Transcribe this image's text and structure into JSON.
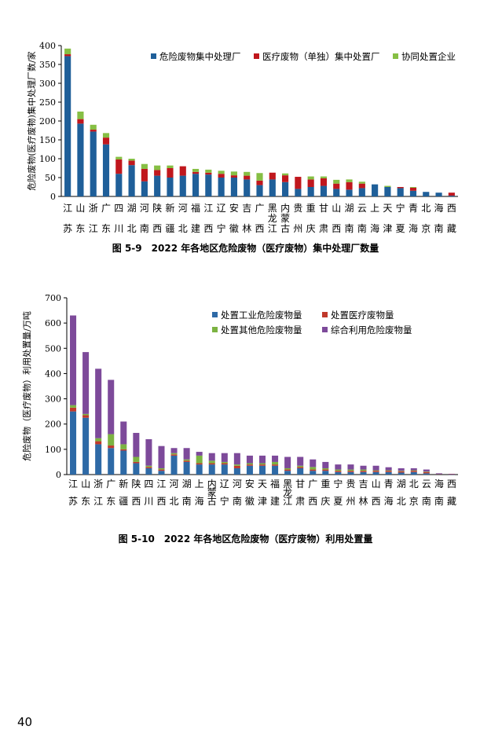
{
  "page_number": "40",
  "chart_data": [
    {
      "type": "bar",
      "stacked": true,
      "caption": "图 5-9　2022 年各地区危险废物（医疗废物）集中处理厂数量",
      "ylabel": "危险废物(医疗废物)集中处理厂数/家",
      "ylim": [
        0,
        400
      ],
      "yticks": [
        0,
        50,
        100,
        150,
        200,
        250,
        300,
        350,
        400
      ],
      "legend_position": "top-right",
      "categories": [
        "江苏",
        "山东",
        "浙江",
        "广东",
        "四川",
        "湖北",
        "河南",
        "陕西",
        "新疆",
        "河北",
        "福建",
        "江西",
        "辽宁",
        "安徽",
        "吉林",
        "广西",
        "黑龙江",
        "内蒙古",
        "贵州",
        "重庆",
        "甘肃",
        "山西",
        "湖南",
        "云南",
        "上海",
        "天津",
        "宁夏",
        "青海",
        "北京",
        "海南",
        "西藏"
      ],
      "series": [
        {
          "name": "危险废物集中处理厂",
          "color": "#1f5f99",
          "values": [
            372,
            193,
            172,
            138,
            60,
            83,
            40,
            55,
            50,
            55,
            60,
            58,
            50,
            50,
            45,
            30,
            45,
            38,
            20,
            25,
            28,
            20,
            18,
            22,
            32,
            25,
            22,
            15,
            12,
            10,
            2
          ]
        },
        {
          "name": "医疗废物（单独）集中处置厂",
          "color": "#c0171d",
          "values": [
            5,
            12,
            5,
            18,
            38,
            12,
            33,
            15,
            25,
            25,
            5,
            5,
            10,
            6,
            10,
            12,
            18,
            18,
            32,
            20,
            20,
            14,
            20,
            12,
            0,
            0,
            3,
            8,
            0,
            0,
            8
          ]
        },
        {
          "name": "协同处置企业",
          "color": "#86bf44",
          "values": [
            15,
            20,
            13,
            12,
            7,
            5,
            13,
            12,
            7,
            0,
            8,
            8,
            8,
            10,
            10,
            20,
            0,
            5,
            0,
            8,
            5,
            10,
            7,
            5,
            0,
            3,
            0,
            2,
            0,
            0,
            0
          ]
        }
      ]
    },
    {
      "type": "bar",
      "stacked": true,
      "caption": "图 5-10　2022 年各地区危险废物（医疗废物）利用处置量",
      "ylabel": "危险废物（医疗废物）利用处置量/万吨",
      "ylim": [
        0,
        700
      ],
      "yticks": [
        0,
        100,
        200,
        300,
        400,
        500,
        600,
        700
      ],
      "legend_position": "top-right",
      "categories": [
        "江苏",
        "山东",
        "浙江",
        "广东",
        "新疆",
        "陕西",
        "四川",
        "江西",
        "河北",
        "湖南",
        "上海",
        "内蒙古",
        "辽宁",
        "河南",
        "安徽",
        "天津",
        "福建",
        "黑龙江",
        "甘肃",
        "广西",
        "重庆",
        "宁夏",
        "贵州",
        "吉林",
        "山西",
        "青海",
        "湖北",
        "北京",
        "云南",
        "海南",
        "西藏"
      ],
      "series": [
        {
          "name": "处置工业危险废物量",
          "color": "#2e6aa6",
          "values": [
            250,
            225,
            120,
            105,
            95,
            45,
            25,
            15,
            75,
            50,
            40,
            40,
            40,
            25,
            35,
            35,
            35,
            15,
            25,
            15,
            15,
            10,
            10,
            10,
            10,
            10,
            8,
            10,
            5,
            2,
            1
          ]
        },
        {
          "name": "处置医疗废物量",
          "color": "#c0392b",
          "values": [
            15,
            10,
            12,
            10,
            5,
            5,
            5,
            5,
            5,
            5,
            5,
            5,
            5,
            10,
            5,
            5,
            5,
            5,
            5,
            5,
            5,
            5,
            5,
            5,
            5,
            5,
            5,
            5,
            5,
            1,
            1
          ]
        },
        {
          "name": "处置其他危险废物量",
          "color": "#7cb342",
          "values": [
            10,
            5,
            12,
            45,
            20,
            20,
            5,
            5,
            5,
            5,
            30,
            10,
            5,
            5,
            5,
            5,
            10,
            5,
            5,
            10,
            5,
            5,
            5,
            5,
            2,
            2,
            2,
            2,
            2,
            0,
            0
          ]
        },
        {
          "name": "综合利用危险废物量",
          "color": "#7d4a9a",
          "values": [
            355,
            245,
            275,
            215,
            90,
            95,
            105,
            88,
            20,
            45,
            15,
            30,
            35,
            45,
            30,
            30,
            25,
            45,
            35,
            30,
            25,
            20,
            20,
            15,
            18,
            12,
            10,
            8,
            8,
            2,
            1
          ]
        }
      ]
    }
  ]
}
